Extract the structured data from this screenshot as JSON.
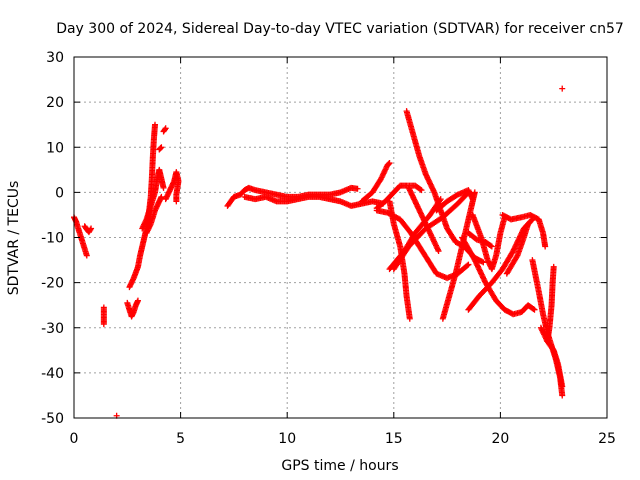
{
  "chart_data": {
    "type": "scatter",
    "title": "Day 300 of 2024, Sidereal Day-to-day VTEC variation (SDTVAR) for receiver cn57",
    "xlabel": "GPS time / hours",
    "ylabel": "SDTVAR / TECUs",
    "xlim": [
      0,
      25
    ],
    "ylim": [
      -50,
      30
    ],
    "x_ticks": [
      "0",
      "5",
      "10",
      "15",
      "20",
      "25"
    ],
    "y_ticks": [
      "30",
      "20",
      "10",
      "0",
      "-10",
      "-20",
      "-30",
      "-40",
      "-50"
    ],
    "grid": true,
    "marker": "+",
    "color": "#ff0000",
    "series": [
      {
        "points": [
          [
            0.0,
            -5.5
          ],
          [
            0.1,
            -6.5
          ],
          [
            0.2,
            -8
          ],
          [
            0.3,
            -9.5
          ],
          [
            0.4,
            -11
          ],
          [
            0.5,
            -12.5
          ],
          [
            0.6,
            -14
          ]
        ]
      },
      {
        "points": [
          [
            0.5,
            -7.5
          ],
          [
            0.6,
            -8.2
          ],
          [
            0.7,
            -8.8
          ],
          [
            0.8,
            -8.0
          ]
        ]
      },
      {
        "points": [
          [
            1.4,
            -25.5
          ],
          [
            1.4,
            -28
          ],
          [
            1.4,
            -29.2
          ]
        ]
      },
      {
        "points": [
          [
            2.0,
            -49.5
          ]
        ]
      },
      {
        "points": [
          [
            2.5,
            -24.5
          ],
          [
            2.6,
            -26
          ],
          [
            2.7,
            -27.5
          ],
          [
            2.8,
            -26.5
          ],
          [
            2.9,
            -25
          ],
          [
            3.0,
            -24
          ]
        ]
      },
      {
        "points": [
          [
            2.6,
            -21
          ],
          [
            2.8,
            -19
          ],
          [
            3.0,
            -16.5
          ],
          [
            3.1,
            -14
          ],
          [
            3.2,
            -12
          ],
          [
            3.3,
            -10
          ],
          [
            3.4,
            -8
          ],
          [
            3.5,
            -5
          ],
          [
            3.6,
            -1
          ],
          [
            3.65,
            3
          ],
          [
            3.7,
            8
          ],
          [
            3.75,
            12
          ],
          [
            3.8,
            15
          ]
        ]
      },
      {
        "points": [
          [
            3.2,
            -8
          ],
          [
            3.4,
            -6
          ],
          [
            3.6,
            -3
          ],
          [
            3.8,
            0
          ],
          [
            3.9,
            3
          ],
          [
            4.0,
            5
          ],
          [
            4.1,
            3
          ],
          [
            4.2,
            1
          ]
        ]
      },
      {
        "points": [
          [
            3.4,
            -9
          ],
          [
            3.6,
            -7
          ],
          [
            3.8,
            -4
          ],
          [
            4.0,
            -2
          ],
          [
            4.1,
            -1
          ]
        ]
      },
      {
        "points": [
          [
            4.0,
            9.5
          ],
          [
            4.1,
            10
          ]
        ]
      },
      {
        "points": [
          [
            4.2,
            13.5
          ],
          [
            4.3,
            14.2
          ]
        ]
      },
      {
        "points": [
          [
            4.3,
            -1.5
          ],
          [
            4.5,
            0.5
          ],
          [
            4.7,
            2.5
          ],
          [
            4.8,
            4.5
          ],
          [
            4.9,
            2.5
          ],
          [
            4.8,
            -0.5
          ],
          [
            4.8,
            -2
          ]
        ]
      },
      {
        "points": [
          [
            7.2,
            -3
          ],
          [
            7.5,
            -1
          ],
          [
            7.8,
            -0.5
          ],
          [
            8.0,
            0.5
          ],
          [
            8.2,
            1
          ],
          [
            8.5,
            0.5
          ],
          [
            9.0,
            0
          ],
          [
            9.5,
            -0.5
          ],
          [
            10.0,
            -1
          ],
          [
            10.5,
            -1
          ],
          [
            11.0,
            -0.5
          ],
          [
            11.5,
            -0.5
          ],
          [
            12.0,
            -0.5
          ],
          [
            12.5,
            0
          ],
          [
            13.0,
            1
          ],
          [
            13.3,
            0.8
          ]
        ]
      },
      {
        "points": [
          [
            8.0,
            -1
          ],
          [
            8.5,
            -1.5
          ],
          [
            9.0,
            -1
          ],
          [
            9.5,
            -2
          ],
          [
            10.0,
            -2
          ],
          [
            10.5,
            -1.5
          ],
          [
            11.0,
            -1
          ],
          [
            11.5,
            -1
          ],
          [
            12.0,
            -1.5
          ],
          [
            12.5,
            -2
          ],
          [
            13.0,
            -3
          ],
          [
            13.5,
            -2.5
          ],
          [
            14.0,
            -2
          ],
          [
            14.5,
            -2.5
          ]
        ]
      },
      {
        "points": [
          [
            13.5,
            -2
          ],
          [
            14.0,
            0
          ],
          [
            14.4,
            3
          ],
          [
            14.7,
            6
          ],
          [
            14.8,
            6.5
          ]
        ]
      },
      {
        "points": [
          [
            14.2,
            -3.5
          ],
          [
            14.6,
            -2
          ],
          [
            15.0,
            0
          ],
          [
            15.3,
            1.5
          ],
          [
            15.6,
            1.5
          ],
          [
            16.0,
            1.5
          ],
          [
            16.3,
            0.5
          ]
        ]
      },
      {
        "points": [
          [
            14.8,
            -2
          ],
          [
            15.0,
            -7
          ],
          [
            15.3,
            -12
          ],
          [
            15.5,
            -18
          ],
          [
            15.6,
            -23
          ],
          [
            15.75,
            -28
          ]
        ]
      },
      {
        "points": [
          [
            14.8,
            -17
          ],
          [
            15.5,
            -13
          ],
          [
            16.0,
            -9
          ],
          [
            16.7,
            -5
          ],
          [
            17.2,
            -1.5
          ]
        ]
      },
      {
        "points": [
          [
            15.0,
            -17
          ],
          [
            15.7,
            -12
          ],
          [
            16.5,
            -8
          ],
          [
            17.3,
            -5.5
          ],
          [
            18.0,
            -2.5
          ],
          [
            18.5,
            0
          ]
        ]
      },
      {
        "points": [
          [
            15.6,
            18
          ],
          [
            15.9,
            13
          ],
          [
            16.2,
            8
          ],
          [
            16.5,
            4
          ],
          [
            16.9,
            0
          ],
          [
            17.2,
            -4
          ],
          [
            17.5,
            -8
          ],
          [
            17.9,
            -11
          ],
          [
            18.3,
            -12
          ],
          [
            18.8,
            -14.5
          ],
          [
            19.2,
            -15.5
          ]
        ]
      },
      {
        "points": [
          [
            14.2,
            -4
          ],
          [
            14.7,
            -4.5
          ],
          [
            15.3,
            -6
          ],
          [
            15.8,
            -9
          ],
          [
            16.2,
            -12
          ],
          [
            16.6,
            -15
          ],
          [
            17.0,
            -18
          ],
          [
            17.5,
            -19
          ],
          [
            18.0,
            -18
          ],
          [
            18.5,
            -16
          ]
        ]
      },
      {
        "points": [
          [
            15.7,
            1
          ],
          [
            16.1,
            -3
          ],
          [
            16.5,
            -7
          ],
          [
            16.8,
            -10
          ],
          [
            17.1,
            -13
          ]
        ]
      },
      {
        "points": [
          [
            17.0,
            -4
          ],
          [
            17.5,
            -2
          ],
          [
            18.0,
            -0.5
          ],
          [
            18.5,
            0.5
          ],
          [
            18.7,
            -1.5
          ]
        ]
      },
      {
        "points": [
          [
            17.3,
            -28
          ],
          [
            17.6,
            -23
          ],
          [
            17.9,
            -18
          ],
          [
            18.2,
            -12
          ],
          [
            18.5,
            -6
          ],
          [
            18.7,
            -2
          ],
          [
            18.8,
            0
          ]
        ]
      },
      {
        "points": [
          [
            18.5,
            -9
          ],
          [
            18.9,
            -10.5
          ],
          [
            19.3,
            -11
          ],
          [
            19.6,
            -12
          ]
        ]
      },
      {
        "points": [
          [
            18.2,
            -10
          ],
          [
            18.8,
            -15
          ],
          [
            19.3,
            -20
          ],
          [
            19.8,
            -24
          ],
          [
            20.2,
            -26
          ],
          [
            20.6,
            -27
          ],
          [
            21.0,
            -26.5
          ],
          [
            21.3,
            -25
          ],
          [
            21.6,
            -26
          ]
        ]
      },
      {
        "points": [
          [
            18.5,
            -26
          ],
          [
            19.0,
            -23
          ],
          [
            19.6,
            -20
          ],
          [
            20.1,
            -17
          ],
          [
            20.6,
            -13
          ],
          [
            21.1,
            -8
          ],
          [
            21.4,
            -6.5
          ]
        ]
      },
      {
        "points": [
          [
            18.7,
            -5
          ],
          [
            19.1,
            -10
          ],
          [
            19.4,
            -15
          ],
          [
            19.6,
            -17
          ],
          [
            19.8,
            -14
          ],
          [
            20.0,
            -9
          ],
          [
            20.2,
            -5.5
          ]
        ]
      },
      {
        "points": [
          [
            20.1,
            -5
          ],
          [
            20.5,
            -6
          ],
          [
            21.0,
            -5.5
          ],
          [
            21.4,
            -5
          ],
          [
            21.8,
            -6
          ],
          [
            22.0,
            -9
          ],
          [
            22.1,
            -12
          ]
        ]
      },
      {
        "points": [
          [
            20.3,
            -18
          ],
          [
            20.8,
            -14
          ],
          [
            21.1,
            -10
          ],
          [
            21.3,
            -7
          ],
          [
            21.5,
            -6
          ]
        ]
      },
      {
        "points": [
          [
            21.5,
            -15
          ],
          [
            21.8,
            -22
          ],
          [
            22.0,
            -27
          ],
          [
            22.2,
            -31
          ],
          [
            22.4,
            -34
          ],
          [
            22.6,
            -37
          ],
          [
            22.8,
            -41
          ],
          [
            22.9,
            -45
          ]
        ]
      },
      {
        "points": [
          [
            21.9,
            -30
          ],
          [
            22.2,
            -33
          ],
          [
            22.5,
            -35
          ],
          [
            22.7,
            -38
          ],
          [
            22.9,
            -43
          ]
        ]
      },
      {
        "points": [
          [
            22.5,
            -16.5
          ],
          [
            22.45,
            -20
          ],
          [
            22.4,
            -25
          ],
          [
            22.3,
            -30
          ],
          [
            22.2,
            -33
          ]
        ]
      },
      {
        "points": [
          [
            22.9,
            23
          ]
        ]
      }
    ]
  }
}
